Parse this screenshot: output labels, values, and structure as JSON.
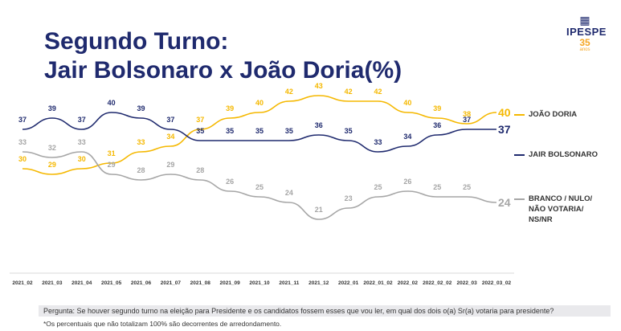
{
  "title_line1": "Segundo Turno:",
  "title_line2": "Jair Bolsonaro x João Doria(%)",
  "logo": {
    "name": "IPESPE",
    "years": "35",
    "anos": "anos"
  },
  "colors": {
    "doria": "#f5b800",
    "bolsonaro": "#1f2a6e",
    "branco": "#a6a6a6"
  },
  "chart_data": {
    "type": "line",
    "categories": [
      "2021_02",
      "2021_03",
      "2021_04",
      "2021_05",
      "2021_06",
      "2021_07",
      "2021_08",
      "2021_09",
      "2021_10",
      "2021_11",
      "2021_12",
      "2022_01",
      "2022_01_02",
      "2022_02",
      "2022_02_02",
      "2022_03",
      "2022_03_02"
    ],
    "series": [
      {
        "name": "JOÃO DORIA",
        "values": [
          30,
          29,
          30,
          31,
          33,
          34,
          37,
          39,
          40,
          42,
          43,
          42,
          42,
          40,
          39,
          38,
          40
        ]
      },
      {
        "name": "JAIR BOLSONARO",
        "values": [
          37,
          39,
          37,
          40,
          39,
          37,
          35,
          35,
          35,
          35,
          36,
          35,
          33,
          34,
          36,
          37,
          37
        ]
      },
      {
        "name": "BRANCO / NULO/\nNÃO VOTARIA/\nNS/NR",
        "values": [
          33,
          32,
          33,
          29,
          28,
          29,
          28,
          26,
          25,
          24,
          21,
          23,
          25,
          26,
          25,
          25,
          24
        ]
      }
    ],
    "legend": "right"
  },
  "footer": {
    "question": "Pergunta:  Se houver segundo turno na eleição para Presidente e os candidatos fossem esses que vou ler, em qual dos dois o(a) Sr(a) votaria para presidente?",
    "note": "*Os percentuais que não totalizam 100% são decorrentes de arredondamento."
  }
}
